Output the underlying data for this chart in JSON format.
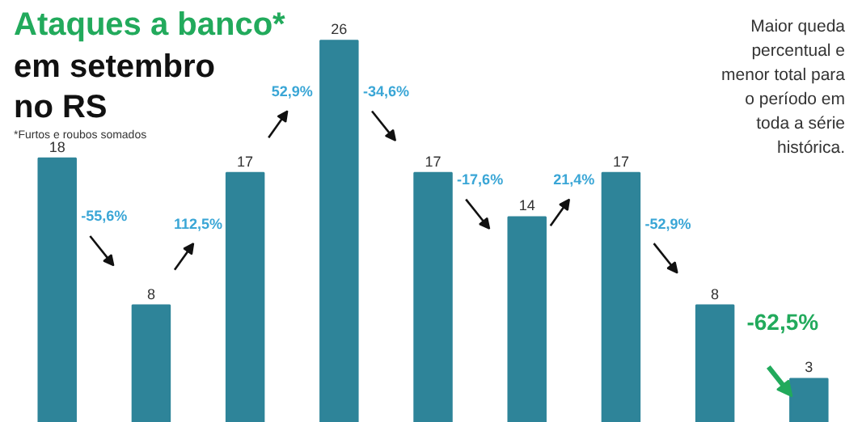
{
  "chart_data": {
    "type": "bar",
    "title": "Ataques a banco*",
    "subtitle": "em setembro no RS",
    "categories": [
      null,
      null,
      null,
      null,
      null,
      null,
      null,
      null,
      null
    ],
    "values": [
      18,
      8,
      17,
      26,
      17,
      14,
      17,
      8,
      3
    ],
    "color": "#2e8499",
    "data_labels": true,
    "grid": false,
    "annotations": [
      "*Furtos e roubos somados",
      "Maior queda percentual e menor total para o período em toda a série histórica.",
      "-55,6%",
      "112,5%",
      "52,9%",
      "-34,6%",
      "-17,6%",
      "21,4%",
      "-52,9%",
      "-62,5%"
    ]
  }
}
